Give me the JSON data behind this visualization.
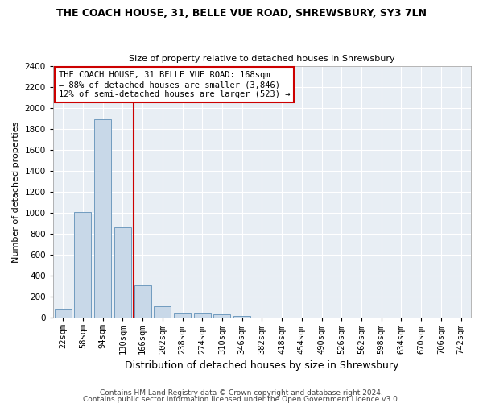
{
  "title": "THE COACH HOUSE, 31, BELLE VUE ROAD, SHREWSBURY, SY3 7LN",
  "subtitle": "Size of property relative to detached houses in Shrewsbury",
  "xlabel": "Distribution of detached houses by size in Shrewsbury",
  "ylabel": "Number of detached properties",
  "bar_color": "#c8d8e8",
  "bar_edge_color": "#6090b8",
  "bin_labels": [
    "22sqm",
    "58sqm",
    "94sqm",
    "130sqm",
    "166sqm",
    "202sqm",
    "238sqm",
    "274sqm",
    "310sqm",
    "346sqm",
    "382sqm",
    "418sqm",
    "454sqm",
    "490sqm",
    "526sqm",
    "562sqm",
    "598sqm",
    "634sqm",
    "670sqm",
    "706sqm",
    "742sqm"
  ],
  "bar_values": [
    85,
    1010,
    1890,
    860,
    310,
    110,
    50,
    45,
    35,
    20,
    5,
    0,
    0,
    0,
    0,
    0,
    0,
    0,
    0,
    0,
    0
  ],
  "ylim": [
    0,
    2400
  ],
  "yticks": [
    0,
    200,
    400,
    600,
    800,
    1000,
    1200,
    1400,
    1600,
    1800,
    2000,
    2200,
    2400
  ],
  "annotation_text": "THE COACH HOUSE, 31 BELLE VUE ROAD: 168sqm\n← 88% of detached houses are smaller (3,846)\n12% of semi-detached houses are larger (523) →",
  "annotation_box_color": "#ffffff",
  "annotation_box_edgecolor": "#cc0000",
  "property_line_color": "#cc0000",
  "footer1": "Contains HM Land Registry data © Crown copyright and database right 2024.",
  "footer2": "Contains public sector information licensed under the Open Government Licence v3.0.",
  "bg_color": "#ffffff",
  "plot_bg_color": "#e8eef4",
  "grid_color": "#ffffff",
  "title_fontsize": 9,
  "subtitle_fontsize": 8,
  "xlabel_fontsize": 9,
  "ylabel_fontsize": 8,
  "tick_fontsize": 7.5,
  "footer_fontsize": 6.5
}
